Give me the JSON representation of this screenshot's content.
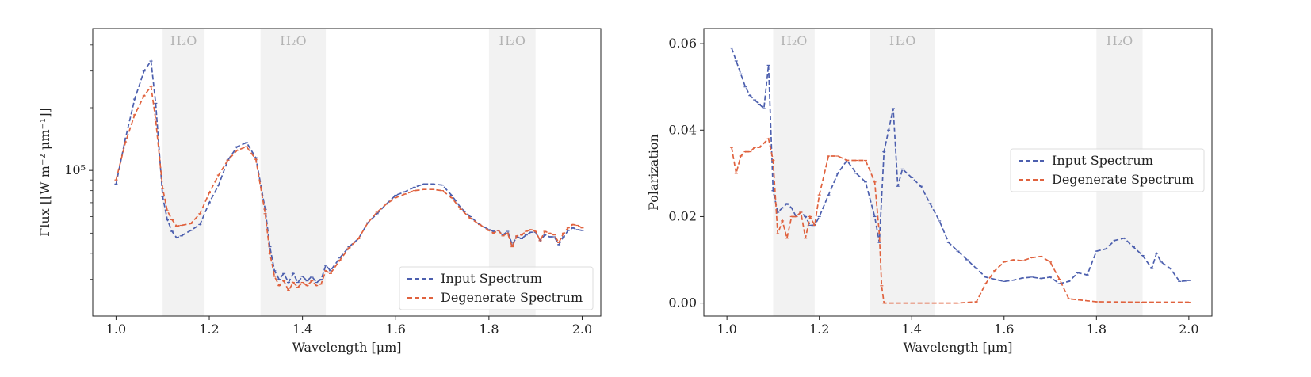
{
  "chart_data": [
    {
      "type": "line",
      "title": "",
      "xlabel": "Wavelength [μm]",
      "ylabel": "Flux [[W m⁻² μm⁻¹]]",
      "yscale": "log",
      "xlim": [
        0.95,
        2.04
      ],
      "ylim": [
        20000,
        480000
      ],
      "xticks": [
        1.0,
        1.2,
        1.4,
        1.6,
        1.8,
        2.0
      ],
      "xtick_labels": [
        "1.0",
        "1.2",
        "1.4",
        "1.6",
        "1.8",
        "2.0"
      ],
      "yticks": [
        100000
      ],
      "ytick_labels": [
        "10⁵"
      ],
      "minor_yticks": [
        30000,
        40000,
        50000,
        60000,
        70000,
        80000,
        90000,
        200000,
        300000,
        400000
      ],
      "bands": [
        {
          "label": "H₂O",
          "x0": 1.1,
          "x1": 1.19
        },
        {
          "label": "H₂O",
          "x0": 1.31,
          "x1": 1.45
        },
        {
          "label": "H₂O",
          "x0": 1.8,
          "x1": 1.9
        }
      ],
      "legend_position": "lower-right",
      "series": [
        {
          "name": "Input Spectrum",
          "color": "#4c5fae",
          "x": [
            1.0,
            1.02,
            1.04,
            1.06,
            1.075,
            1.085,
            1.1,
            1.11,
            1.12,
            1.13,
            1.14,
            1.16,
            1.18,
            1.2,
            1.22,
            1.24,
            1.26,
            1.28,
            1.3,
            1.32,
            1.33,
            1.34,
            1.35,
            1.36,
            1.37,
            1.38,
            1.39,
            1.4,
            1.41,
            1.42,
            1.43,
            1.44,
            1.45,
            1.46,
            1.48,
            1.5,
            1.52,
            1.54,
            1.56,
            1.58,
            1.6,
            1.62,
            1.64,
            1.66,
            1.68,
            1.7,
            1.72,
            1.74,
            1.76,
            1.78,
            1.8,
            1.81,
            1.82,
            1.83,
            1.84,
            1.85,
            1.86,
            1.87,
            1.88,
            1.89,
            1.9,
            1.91,
            1.92,
            1.93,
            1.94,
            1.95,
            1.96,
            1.97,
            1.98,
            1.99,
            2.0
          ],
          "y": [
            86000,
            142000,
            220000,
            300000,
            335000,
            210000,
            75000,
            58000,
            51000,
            47500,
            48500,
            51500,
            55000,
            70000,
            85000,
            112000,
            130000,
            136000,
            115000,
            65000,
            43000,
            33000,
            30000,
            32000,
            29000,
            32000,
            29000,
            31000,
            29500,
            31000,
            29000,
            30000,
            35000,
            33000,
            38000,
            43000,
            47000,
            56000,
            62000,
            69000,
            76000,
            79000,
            83000,
            86000,
            86000,
            85000,
            76000,
            66000,
            60000,
            55000,
            52000,
            51000,
            51500,
            49000,
            51000,
            44000,
            48000,
            47000,
            49000,
            50500,
            50500,
            46000,
            49000,
            48000,
            48000,
            44000,
            48000,
            51500,
            53000,
            52000,
            51500
          ]
        },
        {
          "name": "Degenerate Spectrum",
          "color": "#e0623e",
          "x": [
            1.0,
            1.02,
            1.04,
            1.06,
            1.075,
            1.085,
            1.1,
            1.11,
            1.12,
            1.13,
            1.14,
            1.16,
            1.18,
            1.2,
            1.22,
            1.24,
            1.26,
            1.28,
            1.3,
            1.32,
            1.33,
            1.34,
            1.35,
            1.36,
            1.37,
            1.38,
            1.39,
            1.4,
            1.41,
            1.42,
            1.43,
            1.44,
            1.45,
            1.46,
            1.48,
            1.5,
            1.52,
            1.54,
            1.56,
            1.58,
            1.6,
            1.62,
            1.64,
            1.66,
            1.68,
            1.7,
            1.72,
            1.74,
            1.76,
            1.78,
            1.8,
            1.81,
            1.82,
            1.83,
            1.84,
            1.85,
            1.86,
            1.87,
            1.88,
            1.89,
            1.9,
            1.91,
            1.92,
            1.93,
            1.94,
            1.95,
            1.96,
            1.97,
            1.98,
            1.99,
            2.0
          ],
          "y": [
            90000,
            136000,
            185000,
            228000,
            253000,
            175000,
            82000,
            64000,
            58000,
            54000,
            54500,
            55500,
            62000,
            78000,
            95000,
            112000,
            125000,
            130000,
            113000,
            62000,
            40000,
            31000,
            28000,
            29500,
            26500,
            29000,
            27500,
            29000,
            28000,
            29500,
            28000,
            28500,
            33000,
            32000,
            37000,
            42500,
            47000,
            56000,
            63000,
            69000,
            74000,
            77000,
            80000,
            81000,
            81000,
            80000,
            74000,
            65000,
            59000,
            55000,
            51500,
            50000,
            51500,
            48500,
            50000,
            43000,
            48500,
            49000,
            51000,
            52000,
            51000,
            46000,
            51000,
            50000,
            49000,
            45000,
            50000,
            53000,
            55000,
            54500,
            53000
          ]
        }
      ]
    },
    {
      "type": "line",
      "title": "",
      "xlabel": "Wavelength [μm]",
      "ylabel": "Polarization",
      "yscale": "linear",
      "xlim": [
        0.95,
        2.05
      ],
      "ylim": [
        -0.003,
        0.0635
      ],
      "xticks": [
        1.0,
        1.2,
        1.4,
        1.6,
        1.8,
        2.0
      ],
      "xtick_labels": [
        "1.0",
        "1.2",
        "1.4",
        "1.6",
        "1.8",
        "2.0"
      ],
      "yticks": [
        0.0,
        0.02,
        0.04,
        0.06
      ],
      "ytick_labels": [
        "0.00",
        "0.02",
        "0.04",
        "0.06"
      ],
      "bands": [
        {
          "label": "H₂O",
          "x0": 1.1,
          "x1": 1.19
        },
        {
          "label": "H₂O",
          "x0": 1.31,
          "x1": 1.45
        },
        {
          "label": "H₂O",
          "x0": 1.8,
          "x1": 1.9
        }
      ],
      "legend_position": "right",
      "series": [
        {
          "name": "Input Spectrum",
          "color": "#4c5fae",
          "x": [
            1.01,
            1.02,
            1.03,
            1.04,
            1.05,
            1.06,
            1.07,
            1.08,
            1.09,
            1.1,
            1.11,
            1.12,
            1.13,
            1.14,
            1.15,
            1.16,
            1.17,
            1.18,
            1.19,
            1.2,
            1.22,
            1.24,
            1.26,
            1.28,
            1.3,
            1.32,
            1.33,
            1.34,
            1.35,
            1.36,
            1.37,
            1.38,
            1.4,
            1.42,
            1.44,
            1.46,
            1.48,
            1.5,
            1.52,
            1.54,
            1.56,
            1.58,
            1.6,
            1.62,
            1.64,
            1.66,
            1.68,
            1.7,
            1.72,
            1.74,
            1.76,
            1.78,
            1.8,
            1.82,
            1.84,
            1.86,
            1.88,
            1.9,
            1.92,
            1.93,
            1.94,
            1.96,
            1.98,
            2.0
          ],
          "y": [
            0.059,
            0.056,
            0.053,
            0.05,
            0.048,
            0.047,
            0.046,
            0.045,
            0.055,
            0.026,
            0.021,
            0.022,
            0.023,
            0.022,
            0.02,
            0.021,
            0.02,
            0.018,
            0.018,
            0.02,
            0.025,
            0.03,
            0.033,
            0.03,
            0.028,
            0.02,
            0.014,
            0.035,
            0.04,
            0.045,
            0.027,
            0.031,
            0.029,
            0.027,
            0.023,
            0.019,
            0.014,
            0.012,
            0.01,
            0.008,
            0.006,
            0.0055,
            0.005,
            0.0053,
            0.0058,
            0.006,
            0.0057,
            0.006,
            0.0045,
            0.005,
            0.007,
            0.0065,
            0.012,
            0.0125,
            0.0145,
            0.015,
            0.013,
            0.011,
            0.008,
            0.0115,
            0.0095,
            0.008,
            0.005,
            0.0052
          ]
        },
        {
          "name": "Degenerate Spectrum",
          "color": "#e0623e",
          "x": [
            1.01,
            1.02,
            1.03,
            1.04,
            1.05,
            1.06,
            1.07,
            1.08,
            1.09,
            1.1,
            1.11,
            1.12,
            1.13,
            1.14,
            1.15,
            1.16,
            1.17,
            1.18,
            1.19,
            1.2,
            1.22,
            1.24,
            1.26,
            1.28,
            1.3,
            1.32,
            1.33,
            1.335,
            1.34,
            1.4,
            1.5,
            1.54,
            1.56,
            1.58,
            1.6,
            1.62,
            1.64,
            1.66,
            1.68,
            1.7,
            1.72,
            1.74,
            1.8,
            1.9,
            2.0
          ],
          "y": [
            0.036,
            0.03,
            0.034,
            0.035,
            0.035,
            0.036,
            0.036,
            0.037,
            0.038,
            0.033,
            0.016,
            0.019,
            0.015,
            0.02,
            0.02,
            0.021,
            0.015,
            0.02,
            0.018,
            0.025,
            0.034,
            0.034,
            0.033,
            0.033,
            0.033,
            0.028,
            0.016,
            0.004,
            0.0,
            0.0,
            0.0,
            0.0003,
            0.0045,
            0.0075,
            0.0095,
            0.01,
            0.0098,
            0.0105,
            0.0108,
            0.0095,
            0.0055,
            0.001,
            0.0003,
            0.0002,
            0.0002
          ]
        }
      ]
    }
  ]
}
